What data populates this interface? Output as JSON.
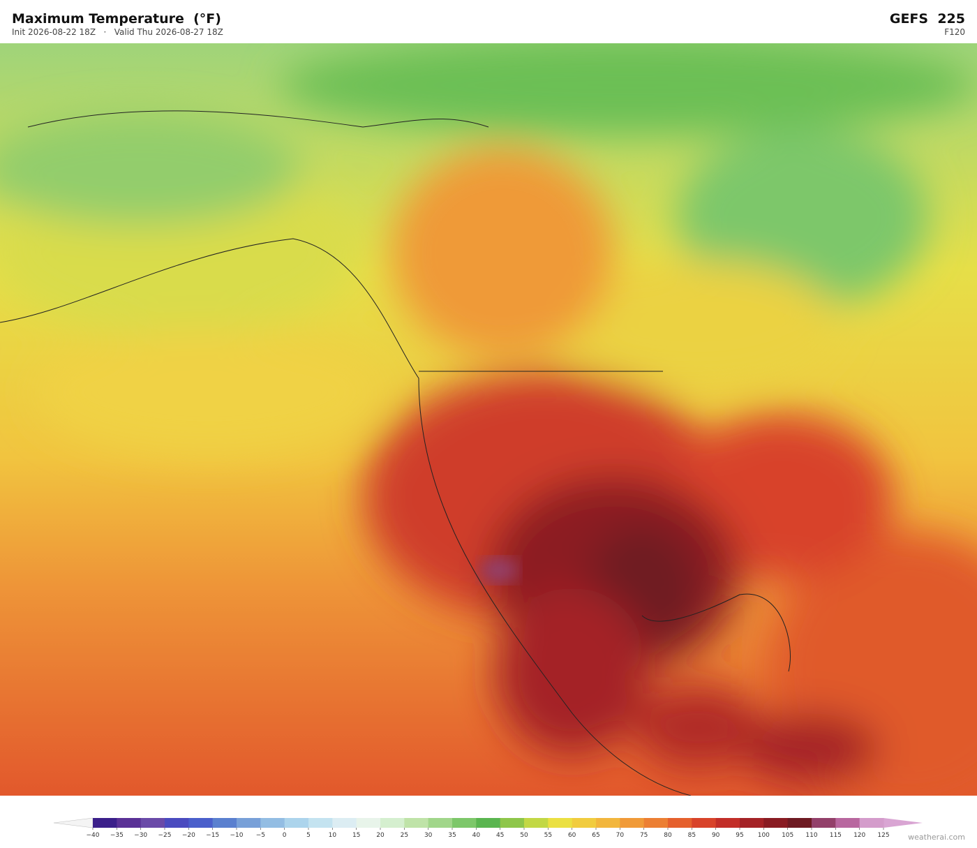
{
  "header": {
    "title": "Maximum Temperature  (°F)",
    "subtitle": "Init 2026-08-22 18Z   ·   Valid Thu 2026-08-27 18Z",
    "model": "GEFS  225",
    "forecast_hour": "F120"
  },
  "colorbar": {
    "ticks": [
      {
        "value": -40,
        "label": "−40"
      },
      {
        "value": -35,
        "label": "−35"
      },
      {
        "value": -30,
        "label": "−30"
      },
      {
        "value": -25,
        "label": "−25"
      },
      {
        "value": -20,
        "label": "−20"
      },
      {
        "value": -15,
        "label": "−15"
      },
      {
        "value": -10,
        "label": "−10"
      },
      {
        "value": -5,
        "label": "−5"
      },
      0,
      5,
      10,
      15,
      20,
      25,
      30,
      35,
      40,
      45,
      50,
      55,
      60,
      65,
      70,
      75,
      80,
      85,
      90,
      95,
      100,
      105,
      110,
      115,
      120,
      125
    ],
    "colors": [
      "#3b1f8a",
      "#5a3196",
      "#6a4aa8",
      "#4a4bbf",
      "#4a5fcb",
      "#5a80cf",
      "#78a0d8",
      "#93bde3",
      "#acd4ec",
      "#c4e3f0",
      "#dcedf3",
      "#e8f4ea",
      "#d5efcf",
      "#bfe3a8",
      "#a1d68a",
      "#7dc76a",
      "#5ab550",
      "#8ec64a",
      "#c2d845",
      "#ebe042",
      "#f1cc3f",
      "#f2b63d",
      "#f09a38",
      "#ec7f33",
      "#e5602d",
      "#d8432a",
      "#c22e28",
      "#a42226",
      "#891b22",
      "#6e1a22",
      "#93406a",
      "#b8679f",
      "#d49ccb"
    ],
    "under_color": "#f4f4f4",
    "over_color": "#d9a5d3"
  },
  "footer": {
    "credit": "weatherai.com"
  }
}
